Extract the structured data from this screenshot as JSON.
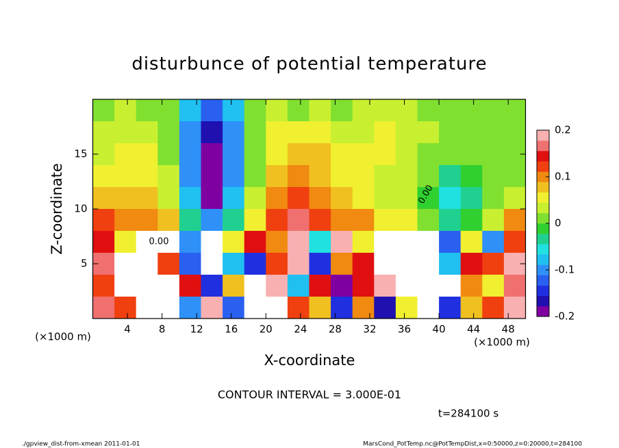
{
  "chart_data": {
    "type": "contour",
    "title": "disturbunce of potential temperature",
    "xlabel": "X-coordinate",
    "ylabel": "Z-coordinate",
    "x_unit_left": "(×1000 m)",
    "x_unit_right": "(×1000 m)",
    "contour_interval": "CONTOUR INTERVAL = 3.000E-01",
    "time_label": "t=284100 s",
    "footer_left": "./gpview_dist-from-xmean  2011-01-01",
    "footer_right": "MarsCond_PotTemp.nc@PotTempDist,x=0:50000,z=0:20000,t=284100",
    "contour_labels": [
      "0.00",
      "0.00"
    ],
    "xlim": [
      0,
      50
    ],
    "xticks": [
      4,
      8,
      12,
      16,
      20,
      24,
      28,
      32,
      36,
      40,
      44,
      48
    ],
    "ylim": [
      0,
      20
    ],
    "yticks": [
      5,
      10,
      15
    ],
    "x": [
      1.25,
      3.75,
      6.25,
      8.75,
      11.25,
      13.75,
      16.25,
      18.75,
      21.25,
      23.75,
      26.25,
      28.75,
      31.25,
      33.75,
      36.25,
      38.75,
      41.25,
      43.75,
      46.25,
      48.75
    ],
    "y": [
      19,
      17,
      15,
      13,
      11,
      9,
      7,
      5,
      3,
      1
    ],
    "z": [
      [
        0.02,
        0.03,
        0.02,
        0.0,
        -0.08,
        -0.13,
        -0.08,
        0.0,
        0.03,
        0.02,
        0.03,
        0.02,
        0.03,
        0.04,
        0.03,
        0.02,
        0.01,
        0.01,
        0.01,
        0.02
      ],
      [
        0.03,
        0.04,
        0.03,
        0.0,
        -0.1,
        -0.17,
        -0.1,
        0.0,
        0.05,
        0.06,
        0.05,
        0.04,
        0.04,
        0.05,
        0.04,
        0.03,
        0.02,
        0.02,
        0.01,
        0.02
      ],
      [
        0.04,
        0.05,
        0.05,
        0.02,
        -0.1,
        -0.18,
        -0.11,
        0.0,
        0.06,
        0.08,
        0.07,
        0.05,
        0.05,
        0.05,
        0.04,
        0.02,
        0.01,
        0.0,
        0.01,
        0.02
      ],
      [
        0.05,
        0.06,
        0.06,
        0.03,
        -0.09,
        -0.19,
        -0.1,
        0.01,
        0.07,
        0.1,
        0.08,
        0.06,
        0.05,
        0.04,
        0.03,
        0.0,
        -0.03,
        -0.02,
        0.0,
        0.02
      ],
      [
        0.07,
        0.08,
        0.07,
        0.04,
        -0.07,
        -0.18,
        -0.08,
        0.03,
        0.09,
        0.12,
        0.09,
        0.07,
        0.06,
        0.04,
        0.03,
        -0.02,
        -0.05,
        -0.04,
        0.0,
        0.03
      ],
      [
        0.12,
        0.1,
        0.1,
        0.08,
        -0.04,
        -0.1,
        -0.04,
        0.06,
        0.12,
        0.17,
        0.12,
        0.1,
        0.09,
        0.06,
        0.05,
        0.0,
        -0.03,
        -0.02,
        0.04,
        0.1
      ],
      [
        0.15,
        0.05,
        0.25,
        0.3,
        -0.1,
        0.3,
        0.05,
        0.15,
        0.1,
        0.18,
        -0.05,
        0.2,
        0.05,
        0.3,
        0.3,
        0.3,
        -0.12,
        0.05,
        -0.1,
        0.12
      ],
      [
        0.17,
        0.3,
        0.25,
        0.12,
        -0.12,
        0.3,
        -0.08,
        -0.15,
        0.12,
        0.2,
        -0.14,
        0.1,
        0.15,
        0.3,
        0.3,
        0.3,
        -0.08,
        0.15,
        0.12,
        0.18
      ],
      [
        0.12,
        0.25,
        0.3,
        0.3,
        0.15,
        -0.14,
        0.08,
        -0.3,
        0.2,
        -0.08,
        0.14,
        -0.2,
        0.15,
        0.18,
        -0.3,
        0.3,
        0.3,
        0.1,
        0.06,
        0.17
      ],
      [
        0.16,
        0.12,
        0.25,
        0.3,
        -0.1,
        0.2,
        -0.12,
        0.3,
        0.25,
        0.12,
        0.08,
        -0.15,
        0.1,
        -0.16,
        0.05,
        -0.25,
        -0.15,
        0.08,
        0.12,
        0.2
      ]
    ],
    "clim": [
      -0.2,
      0.2
    ],
    "cticks": [
      0.2,
      0.1,
      0,
      -0.1,
      -0.2
    ],
    "colors": [
      "#7f00a0",
      "#2010b0",
      "#2030e0",
      "#2a60f0",
      "#2f90f8",
      "#20c0f0",
      "#20e0e0",
      "#20d090",
      "#30d030",
      "#80e030",
      "#c8f030",
      "#f0f030",
      "#f0c020",
      "#f08a10",
      "#f04010",
      "#e01010",
      "#f07070",
      "#f8b0b0"
    ],
    "out_of_range_color": "#ffffff"
  }
}
